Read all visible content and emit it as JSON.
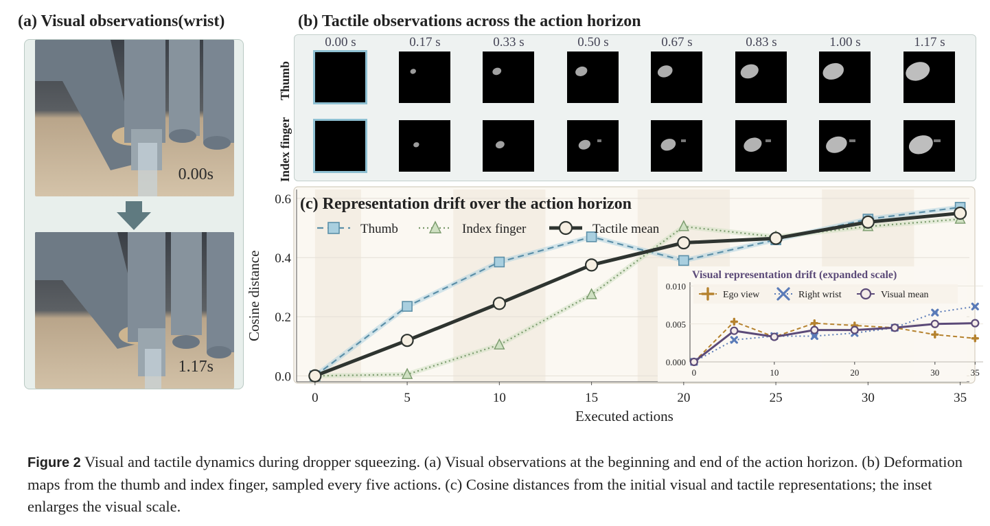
{
  "panel_a": {
    "title": "(a) Visual observations(wrist)",
    "frames": [
      {
        "time": "0.00s"
      },
      {
        "time": "1.17s"
      }
    ]
  },
  "panel_b": {
    "title": "(b) Tactile observations across the action horizon",
    "rows": [
      "Thumb",
      "Index finger"
    ],
    "times": [
      "0.00 s",
      "0.17 s",
      "0.33 s",
      "0.50 s",
      "0.67 s",
      "0.83 s",
      "1.00 s",
      "1.17 s"
    ]
  },
  "panel_c": {
    "title": "(c) Representation drift over the action horizon",
    "xlabel": "Executed actions",
    "ylabel": "Cosine distance"
  },
  "chart_data": [
    {
      "type": "line",
      "title": "(c) Representation drift over the action horizon",
      "xlabel": "Executed actions",
      "ylabel": "Cosine distance",
      "x": [
        0,
        5,
        10,
        15,
        20,
        25,
        30,
        35
      ],
      "xticks": [
        "0",
        "5",
        "10",
        "15",
        "20",
        "25",
        "30",
        "35"
      ],
      "yticks": [
        "0.0",
        "0.2",
        "0.4",
        "0.6"
      ],
      "xlim": [
        -1,
        35.5
      ],
      "ylim": [
        -0.02,
        0.63
      ],
      "legend": "top-left",
      "grid": true,
      "series": [
        {
          "name": "Thumb",
          "values": [
            0.0,
            0.235,
            0.385,
            0.47,
            0.39,
            0.46,
            0.53,
            0.57
          ],
          "color": "#5b8fa8",
          "marker": "square",
          "style": "dashed"
        },
        {
          "name": "Index finger",
          "values": [
            0.0,
            0.005,
            0.105,
            0.275,
            0.505,
            0.47,
            0.505,
            0.53
          ],
          "color": "#7a9a6c",
          "marker": "triangle",
          "style": "dotted"
        },
        {
          "name": "Tactile mean",
          "values": [
            0.0,
            0.12,
            0.245,
            0.375,
            0.45,
            0.465,
            0.52,
            0.55
          ],
          "color": "#2e3430",
          "marker": "circle",
          "style": "solid"
        }
      ]
    },
    {
      "type": "line",
      "title": "Visual representation drift (expanded scale)",
      "x": [
        0,
        5,
        10,
        15,
        20,
        25,
        30,
        35
      ],
      "xticks": [
        "0",
        "10",
        "20",
        "30",
        "35"
      ],
      "xtick_values": [
        0,
        10,
        20,
        30,
        35
      ],
      "yticks": [
        "0.000",
        "0.005",
        "0.010"
      ],
      "xlim": [
        -0.5,
        36
      ],
      "ylim": [
        0.0,
        0.0105
      ],
      "legend": "top",
      "series": [
        {
          "name": "Ego view",
          "values": [
            0.0,
            0.0053,
            0.0033,
            0.0051,
            0.0048,
            0.0045,
            0.0036,
            0.0031
          ],
          "color": "#b5822e",
          "marker": "plus",
          "style": "dashed"
        },
        {
          "name": "Right wrist",
          "values": [
            0.0,
            0.0029,
            0.0034,
            0.0034,
            0.0038,
            0.0045,
            0.0065,
            0.0073
          ],
          "color": "#5a7bb8",
          "marker": "x",
          "style": "dotted"
        },
        {
          "name": "Visual mean",
          "values": [
            0.0,
            0.0041,
            0.0033,
            0.0042,
            0.0042,
            0.0045,
            0.005,
            0.0051
          ],
          "color": "#5b4a78",
          "marker": "circle",
          "style": "solid"
        }
      ]
    }
  ],
  "caption": {
    "label": "Figure 2",
    "text": " Visual and tactile dynamics during dropper squeezing. (a) Visual observations at the beginning and end of the action horizon. (b) Deformation maps from the thumb and index finger, sampled every five actions. (c) Cosine distances from the initial visual and tactile representations; the inset enlarges the visual scale."
  }
}
